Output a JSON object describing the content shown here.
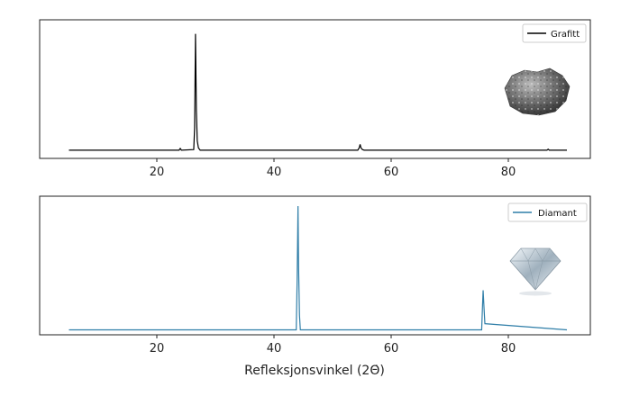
{
  "chart_data": [
    {
      "type": "line",
      "series": [
        {
          "name": "Grafitt",
          "color": "#000000",
          "x": [
            5,
            23.8,
            24.0,
            24.2,
            26.3,
            26.45,
            26.6,
            26.75,
            26.9,
            27.1,
            27.4,
            54.3,
            54.55,
            54.7,
            54.85,
            55.1,
            55.4,
            86.6,
            86.8,
            87.0,
            90
          ],
          "y": [
            1,
            1,
            2.5,
            1,
            1.5,
            20,
            100,
            35,
            9,
            3,
            1,
            1,
            3,
            6,
            3,
            1.5,
            1,
            1,
            1.8,
            1,
            1
          ]
        }
      ],
      "xlim": [
        0,
        94
      ],
      "ylim": [
        -6,
        112
      ],
      "xticks": [
        "20",
        "40",
        "60",
        "80"
      ],
      "legend_position": "top-right",
      "grid": false,
      "image": "graphite-rock-icon"
    },
    {
      "type": "line",
      "series": [
        {
          "name": "Diamant",
          "color": "#2f7ea8",
          "x": [
            5,
            43.8,
            43.95,
            44.1,
            44.2,
            44.35,
            44.5,
            75.45,
            75.6,
            75.7,
            75.85,
            76.0,
            90
          ],
          "y": [
            0,
            0,
            40,
            100,
            50,
            12,
            0,
            0,
            20,
            32,
            18,
            5,
            0
          ],
          "x_ticks_unused": []
        }
      ],
      "xlim": [
        0,
        94
      ],
      "ylim": [
        -4,
        108
      ],
      "xticks": [
        "20",
        "40",
        "60",
        "80"
      ],
      "xlabel": "Refleksjonsvinkel (2Θ̇)",
      "legend_position": "top-right",
      "grid": false,
      "image": "diamond-gem-icon"
    }
  ]
}
